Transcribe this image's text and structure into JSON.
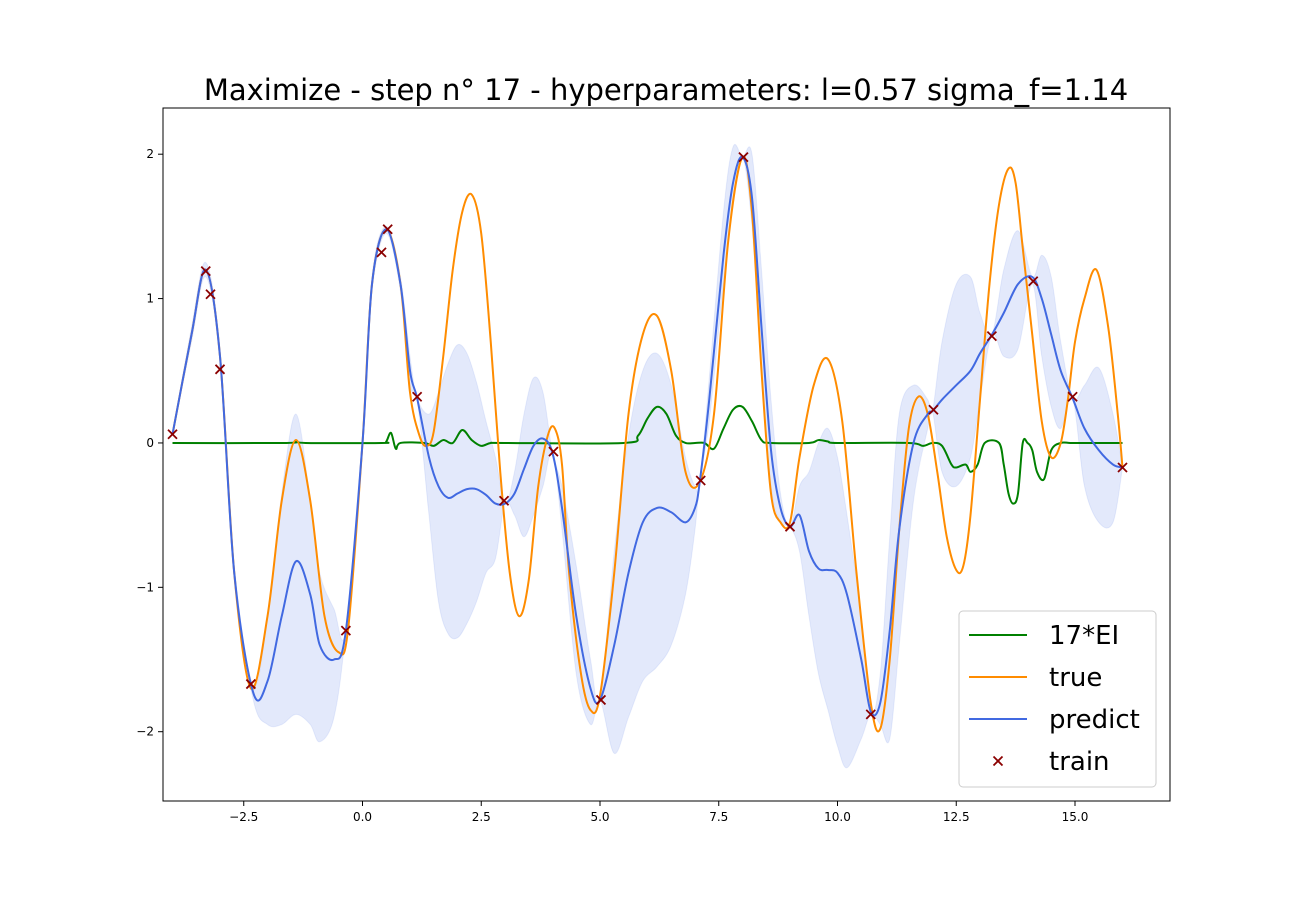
{
  "chart_data": {
    "type": "line",
    "title": "Maximize - step n° 17 - hyperparameters: l=0.57 sigma_f=1.14",
    "xlabel": "",
    "ylabel": "",
    "xlim": [
      -4.2,
      17.0
    ],
    "ylim": [
      -2.48,
      2.32
    ],
    "x_ticks": [
      -2.5,
      0.0,
      2.5,
      5.0,
      7.5,
      10.0,
      12.5,
      15.0
    ],
    "x_tick_labels": [
      "−2.5",
      "0.0",
      "2.5",
      "5.0",
      "7.5",
      "10.0",
      "12.5",
      "15.0"
    ],
    "y_ticks": [
      -2,
      -1,
      0,
      1,
      2
    ],
    "y_tick_labels": [
      "−2",
      "−1",
      "0",
      "1",
      "2"
    ],
    "grid": false,
    "legend_position": "lower-right",
    "legend": [
      {
        "label": "17*EI",
        "kind": "line",
        "color": "#008000"
      },
      {
        "label": "true",
        "kind": "line",
        "color": "#ff8c00"
      },
      {
        "label": "predict",
        "kind": "line",
        "color": "#4169e1"
      },
      {
        "label": "train",
        "kind": "marker",
        "color": "#8b0000"
      }
    ],
    "series": [
      {
        "name": "17*EI",
        "color": "#008000",
        "x": [
          -4.0,
          -1.6,
          -1.4,
          -1.2,
          0.4,
          0.5,
          0.6,
          0.7,
          0.8,
          1.3,
          1.5,
          1.7,
          1.9,
          2.1,
          2.3,
          2.5,
          2.7,
          3.0,
          5.5,
          5.8,
          6.0,
          6.2,
          6.4,
          6.6,
          6.8,
          7.0,
          7.2,
          7.4,
          7.6,
          7.8,
          8.0,
          8.2,
          8.4,
          8.6,
          9.4,
          9.6,
          9.8,
          10.0,
          11.5,
          11.8,
          12.0,
          12.2,
          12.4,
          12.5,
          12.7,
          12.8,
          12.95,
          13.1,
          13.4,
          13.5,
          13.6,
          13.7,
          13.8,
          13.9,
          14.0,
          14.1,
          14.2,
          14.35,
          14.5,
          14.7,
          14.9,
          15.2,
          16.0
        ],
        "y": [
          0.0,
          0.0,
          0.015,
          0.0,
          0.0,
          0.01,
          0.07,
          -0.04,
          0.0,
          0.0,
          -0.02,
          0.02,
          0.0,
          0.09,
          0.02,
          -0.02,
          0.0,
          0.0,
          0.0,
          0.05,
          0.17,
          0.25,
          0.2,
          0.05,
          0.0,
          0.0,
          0.0,
          -0.04,
          0.1,
          0.23,
          0.25,
          0.15,
          0.02,
          0.0,
          0.0,
          0.02,
          0.01,
          0.0,
          0.0,
          -0.02,
          0.0,
          -0.02,
          -0.15,
          -0.17,
          -0.15,
          -0.2,
          -0.15,
          0.0,
          0.0,
          -0.15,
          -0.35,
          -0.42,
          -0.35,
          0.0,
          0.0,
          -0.05,
          -0.2,
          -0.25,
          -0.05,
          0.0,
          0.0,
          0.0,
          0.0
        ]
      },
      {
        "name": "true",
        "color": "#ff8c00",
        "x": [
          -4.0,
          -3.6,
          -3.3,
          -3.0,
          -2.7,
          -2.35,
          -2.0,
          -1.7,
          -1.4,
          -1.1,
          -0.8,
          -0.5,
          -0.3,
          0.0,
          0.2,
          0.5,
          0.8,
          1.0,
          1.2,
          1.35,
          1.5,
          1.7,
          1.9,
          2.1,
          2.3,
          2.5,
          2.7,
          2.9,
          3.1,
          3.3,
          3.5,
          3.7,
          3.9,
          4.05,
          4.2,
          4.35,
          4.6,
          4.8,
          5.0,
          5.3,
          5.6,
          5.9,
          6.2,
          6.5,
          6.8,
          7.1,
          7.4,
          7.7,
          8.0,
          8.2,
          8.4,
          8.6,
          8.8,
          9.0,
          9.2,
          9.5,
          9.8,
          10.1,
          10.4,
          10.7,
          10.9,
          11.1,
          11.3,
          11.5,
          11.7,
          11.9,
          12.1,
          12.3,
          12.5,
          12.65,
          12.8,
          13.0,
          13.2,
          13.4,
          13.6,
          13.75,
          13.9,
          14.1,
          14.3,
          14.5,
          14.7,
          14.85,
          15.0,
          15.2,
          15.45,
          15.7,
          15.9,
          16.0
        ],
        "y": [
          0.06,
          0.75,
          1.2,
          0.6,
          -0.9,
          -1.7,
          -1.2,
          -0.4,
          0.02,
          -0.4,
          -1.2,
          -1.45,
          -1.28,
          0.0,
          1.1,
          1.48,
          1.1,
          0.35,
          0.05,
          -0.02,
          0.08,
          0.6,
          1.2,
          1.6,
          1.72,
          1.45,
          0.7,
          -0.2,
          -0.9,
          -1.2,
          -0.95,
          -0.3,
          0.05,
          0.1,
          -0.15,
          -0.9,
          -1.6,
          -1.85,
          -1.75,
          -0.9,
          0.2,
          0.75,
          0.88,
          0.5,
          -0.2,
          -0.27,
          0.2,
          1.4,
          1.98,
          1.6,
          0.5,
          -0.35,
          -0.55,
          -0.55,
          -0.1,
          0.4,
          0.58,
          0.15,
          -0.9,
          -1.8,
          -1.98,
          -1.5,
          -0.6,
          0.1,
          0.32,
          0.2,
          -0.2,
          -0.65,
          -0.88,
          -0.85,
          -0.5,
          0.3,
          1.1,
          1.65,
          1.9,
          1.8,
          1.35,
          0.75,
          0.15,
          -0.1,
          0.0,
          0.3,
          0.7,
          1.0,
          1.2,
          0.8,
          0.2,
          -0.17
        ]
      },
      {
        "name": "predict",
        "color": "#4169e1",
        "x": [
          -4.0,
          -3.6,
          -3.3,
          -3.0,
          -2.7,
          -2.3,
          -2.0,
          -1.7,
          -1.4,
          -1.1,
          -0.9,
          -0.6,
          -0.35,
          0.0,
          0.2,
          0.5,
          0.8,
          1.0,
          1.15,
          1.4,
          1.6,
          1.8,
          2.0,
          2.2,
          2.4,
          2.6,
          2.8,
          3.0,
          3.2,
          3.4,
          3.6,
          3.8,
          4.0,
          4.2,
          4.5,
          4.8,
          5.0,
          5.3,
          5.6,
          5.9,
          6.2,
          6.5,
          6.8,
          7.0,
          7.1,
          7.3,
          7.6,
          7.8,
          8.0,
          8.2,
          8.4,
          8.6,
          8.8,
          9.0,
          9.2,
          9.4,
          9.6,
          9.8,
          10.0,
          10.2,
          10.5,
          10.7,
          10.9,
          11.1,
          11.3,
          11.6,
          11.9,
          12.0,
          12.2,
          12.5,
          12.8,
          13.0,
          13.25,
          13.5,
          13.8,
          14.1,
          14.3,
          14.5,
          14.7,
          14.95,
          15.2,
          15.5,
          15.8,
          16.0
        ],
        "y": [
          0.06,
          0.75,
          1.2,
          0.6,
          -0.9,
          -1.73,
          -1.65,
          -1.2,
          -0.82,
          -1.05,
          -1.4,
          -1.5,
          -1.3,
          0.0,
          1.1,
          1.48,
          1.1,
          0.5,
          0.31,
          -0.1,
          -0.3,
          -0.38,
          -0.35,
          -0.32,
          -0.32,
          -0.36,
          -0.42,
          -0.42,
          -0.35,
          -0.18,
          -0.02,
          0.03,
          -0.07,
          -0.45,
          -1.2,
          -1.7,
          -1.78,
          -1.4,
          -0.9,
          -0.55,
          -0.45,
          -0.48,
          -0.55,
          -0.45,
          -0.27,
          0.3,
          1.3,
          1.8,
          1.98,
          1.7,
          0.8,
          -0.05,
          -0.45,
          -0.58,
          -0.5,
          -0.75,
          -0.87,
          -0.88,
          -0.9,
          -1.05,
          -1.5,
          -1.86,
          -1.8,
          -1.3,
          -0.6,
          0.0,
          0.2,
          0.22,
          0.3,
          0.4,
          0.5,
          0.62,
          0.75,
          0.9,
          1.1,
          1.15,
          1.0,
          0.75,
          0.5,
          0.31,
          0.1,
          -0.05,
          -0.15,
          -0.17
        ]
      }
    ],
    "confidence_band": {
      "name": "",
      "color": "#4169e1",
      "opacity": 0.15,
      "x": [
        -4.0,
        -3.6,
        -3.3,
        -3.0,
        -2.7,
        -2.3,
        -2.0,
        -1.7,
        -1.4,
        -1.1,
        -0.9,
        -0.6,
        -0.35,
        0.0,
        0.2,
        0.5,
        0.8,
        1.0,
        1.15,
        1.4,
        1.6,
        1.8,
        2.0,
        2.2,
        2.4,
        2.6,
        2.8,
        3.0,
        3.2,
        3.4,
        3.6,
        3.8,
        4.0,
        4.2,
        4.5,
        4.8,
        5.0,
        5.3,
        5.6,
        5.9,
        6.2,
        6.5,
        6.8,
        7.0,
        7.1,
        7.3,
        7.6,
        7.8,
        8.0,
        8.2,
        8.4,
        8.6,
        8.8,
        9.0,
        9.2,
        9.4,
        9.6,
        9.8,
        10.0,
        10.2,
        10.5,
        10.7,
        10.9,
        11.1,
        11.3,
        11.6,
        11.9,
        12.0,
        12.2,
        12.5,
        12.8,
        13.0,
        13.25,
        13.5,
        13.8,
        14.1,
        14.3,
        14.5,
        14.7,
        14.95,
        15.2,
        15.5,
        15.8,
        16.0
      ],
      "lower": [
        0.06,
        0.7,
        1.15,
        0.55,
        -0.95,
        -1.78,
        -1.95,
        -1.95,
        -1.88,
        -1.95,
        -2.07,
        -1.9,
        -1.3,
        0.0,
        1.05,
        1.45,
        1.05,
        0.4,
        0.31,
        -0.5,
        -1.1,
        -1.32,
        -1.35,
        -1.25,
        -1.1,
        -0.9,
        -0.8,
        -0.42,
        -0.5,
        -0.65,
        -0.5,
        -0.3,
        -0.07,
        -0.6,
        -1.6,
        -1.95,
        -1.78,
        -2.15,
        -1.9,
        -1.65,
        -1.55,
        -1.4,
        -1.05,
        -0.6,
        -0.27,
        0.15,
        1.1,
        1.65,
        1.98,
        1.5,
        0.5,
        -0.3,
        -0.55,
        -0.58,
        -0.75,
        -1.2,
        -1.6,
        -1.85,
        -2.1,
        -2.25,
        -2.05,
        -1.88,
        -1.95,
        -2.05,
        -1.4,
        -0.4,
        0.1,
        0.22,
        -0.2,
        -0.3,
        -0.1,
        0.3,
        0.75,
        0.6,
        0.65,
        1.1,
        0.6,
        0.25,
        0.1,
        0.31,
        -0.3,
        -0.55,
        -0.55,
        -0.17
      ],
      "upper": [
        0.06,
        0.8,
        1.25,
        0.65,
        -0.85,
        -1.68,
        -1.2,
        -0.35,
        0.2,
        -0.4,
        -0.9,
        -1.15,
        -1.3,
        0.0,
        1.15,
        1.5,
        1.15,
        0.6,
        0.31,
        0.2,
        0.35,
        0.55,
        0.68,
        0.62,
        0.42,
        0.15,
        -0.1,
        -0.42,
        -0.2,
        0.2,
        0.45,
        0.35,
        -0.07,
        -0.3,
        -0.85,
        -1.5,
        -1.78,
        -0.75,
        0.05,
        0.5,
        0.62,
        0.4,
        -0.1,
        -0.3,
        -0.27,
        0.45,
        1.6,
        2.05,
        1.98,
        2.0,
        1.2,
        0.3,
        -0.35,
        -0.58,
        -0.3,
        -0.2,
        0.0,
        0.1,
        -0.1,
        -0.5,
        -1.2,
        -1.86,
        -1.6,
        -0.65,
        0.2,
        0.4,
        0.3,
        0.22,
        0.7,
        1.1,
        1.15,
        0.9,
        0.75,
        1.2,
        1.47,
        1.15,
        1.3,
        1.15,
        0.7,
        0.31,
        0.4,
        0.52,
        0.2,
        -0.17
      ]
    },
    "train_points": {
      "name": "train",
      "color": "#8b0000",
      "x": [
        -4.0,
        -3.3,
        -3.2,
        -3.0,
        -2.35,
        -0.35,
        0.4,
        0.53,
        1.15,
        2.98,
        4.02,
        5.02,
        7.12,
        8.02,
        9.0,
        10.7,
        12.02,
        13.25,
        14.12,
        14.95,
        16.0
      ],
      "y": [
        0.06,
        1.19,
        1.03,
        0.51,
        -1.67,
        -1.3,
        1.32,
        1.48,
        0.32,
        -0.4,
        -0.06,
        -1.78,
        -0.26,
        1.98,
        -0.58,
        -1.88,
        0.23,
        0.74,
        1.12,
        0.32,
        -0.17
      ]
    }
  }
}
